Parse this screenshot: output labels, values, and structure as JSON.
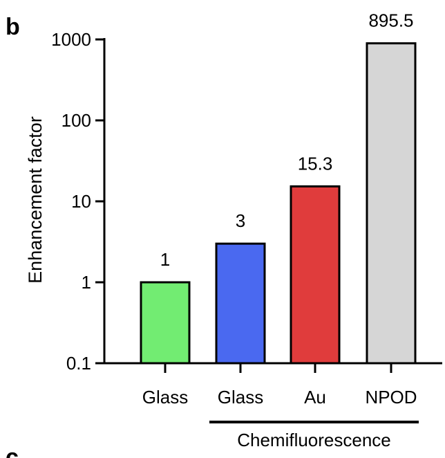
{
  "panel_label": "b",
  "next_panel_label": "c",
  "chart_data": {
    "type": "bar",
    "scale": "log",
    "categories": [
      "Glass",
      "Glass",
      "Au",
      "NPOD"
    ],
    "values": [
      1,
      3,
      15.3,
      895.5
    ],
    "data_labels": [
      "1",
      "3",
      "15.3",
      "895.5"
    ],
    "colors": [
      "#72ec72",
      "#4a69f0",
      "#e03c3c",
      "#d6d6d6"
    ],
    "ylabel": "Enhancement factor",
    "ylim": [
      0.1,
      1000
    ],
    "yticks": [
      0.1,
      1,
      10,
      100,
      1000
    ],
    "ytick_labels": [
      "0.1",
      "1",
      "10",
      "100",
      "1000"
    ],
    "grid": false,
    "group_bracket": {
      "label": "Chemifluorescence",
      "spans_categories": [
        1,
        3
      ]
    }
  }
}
